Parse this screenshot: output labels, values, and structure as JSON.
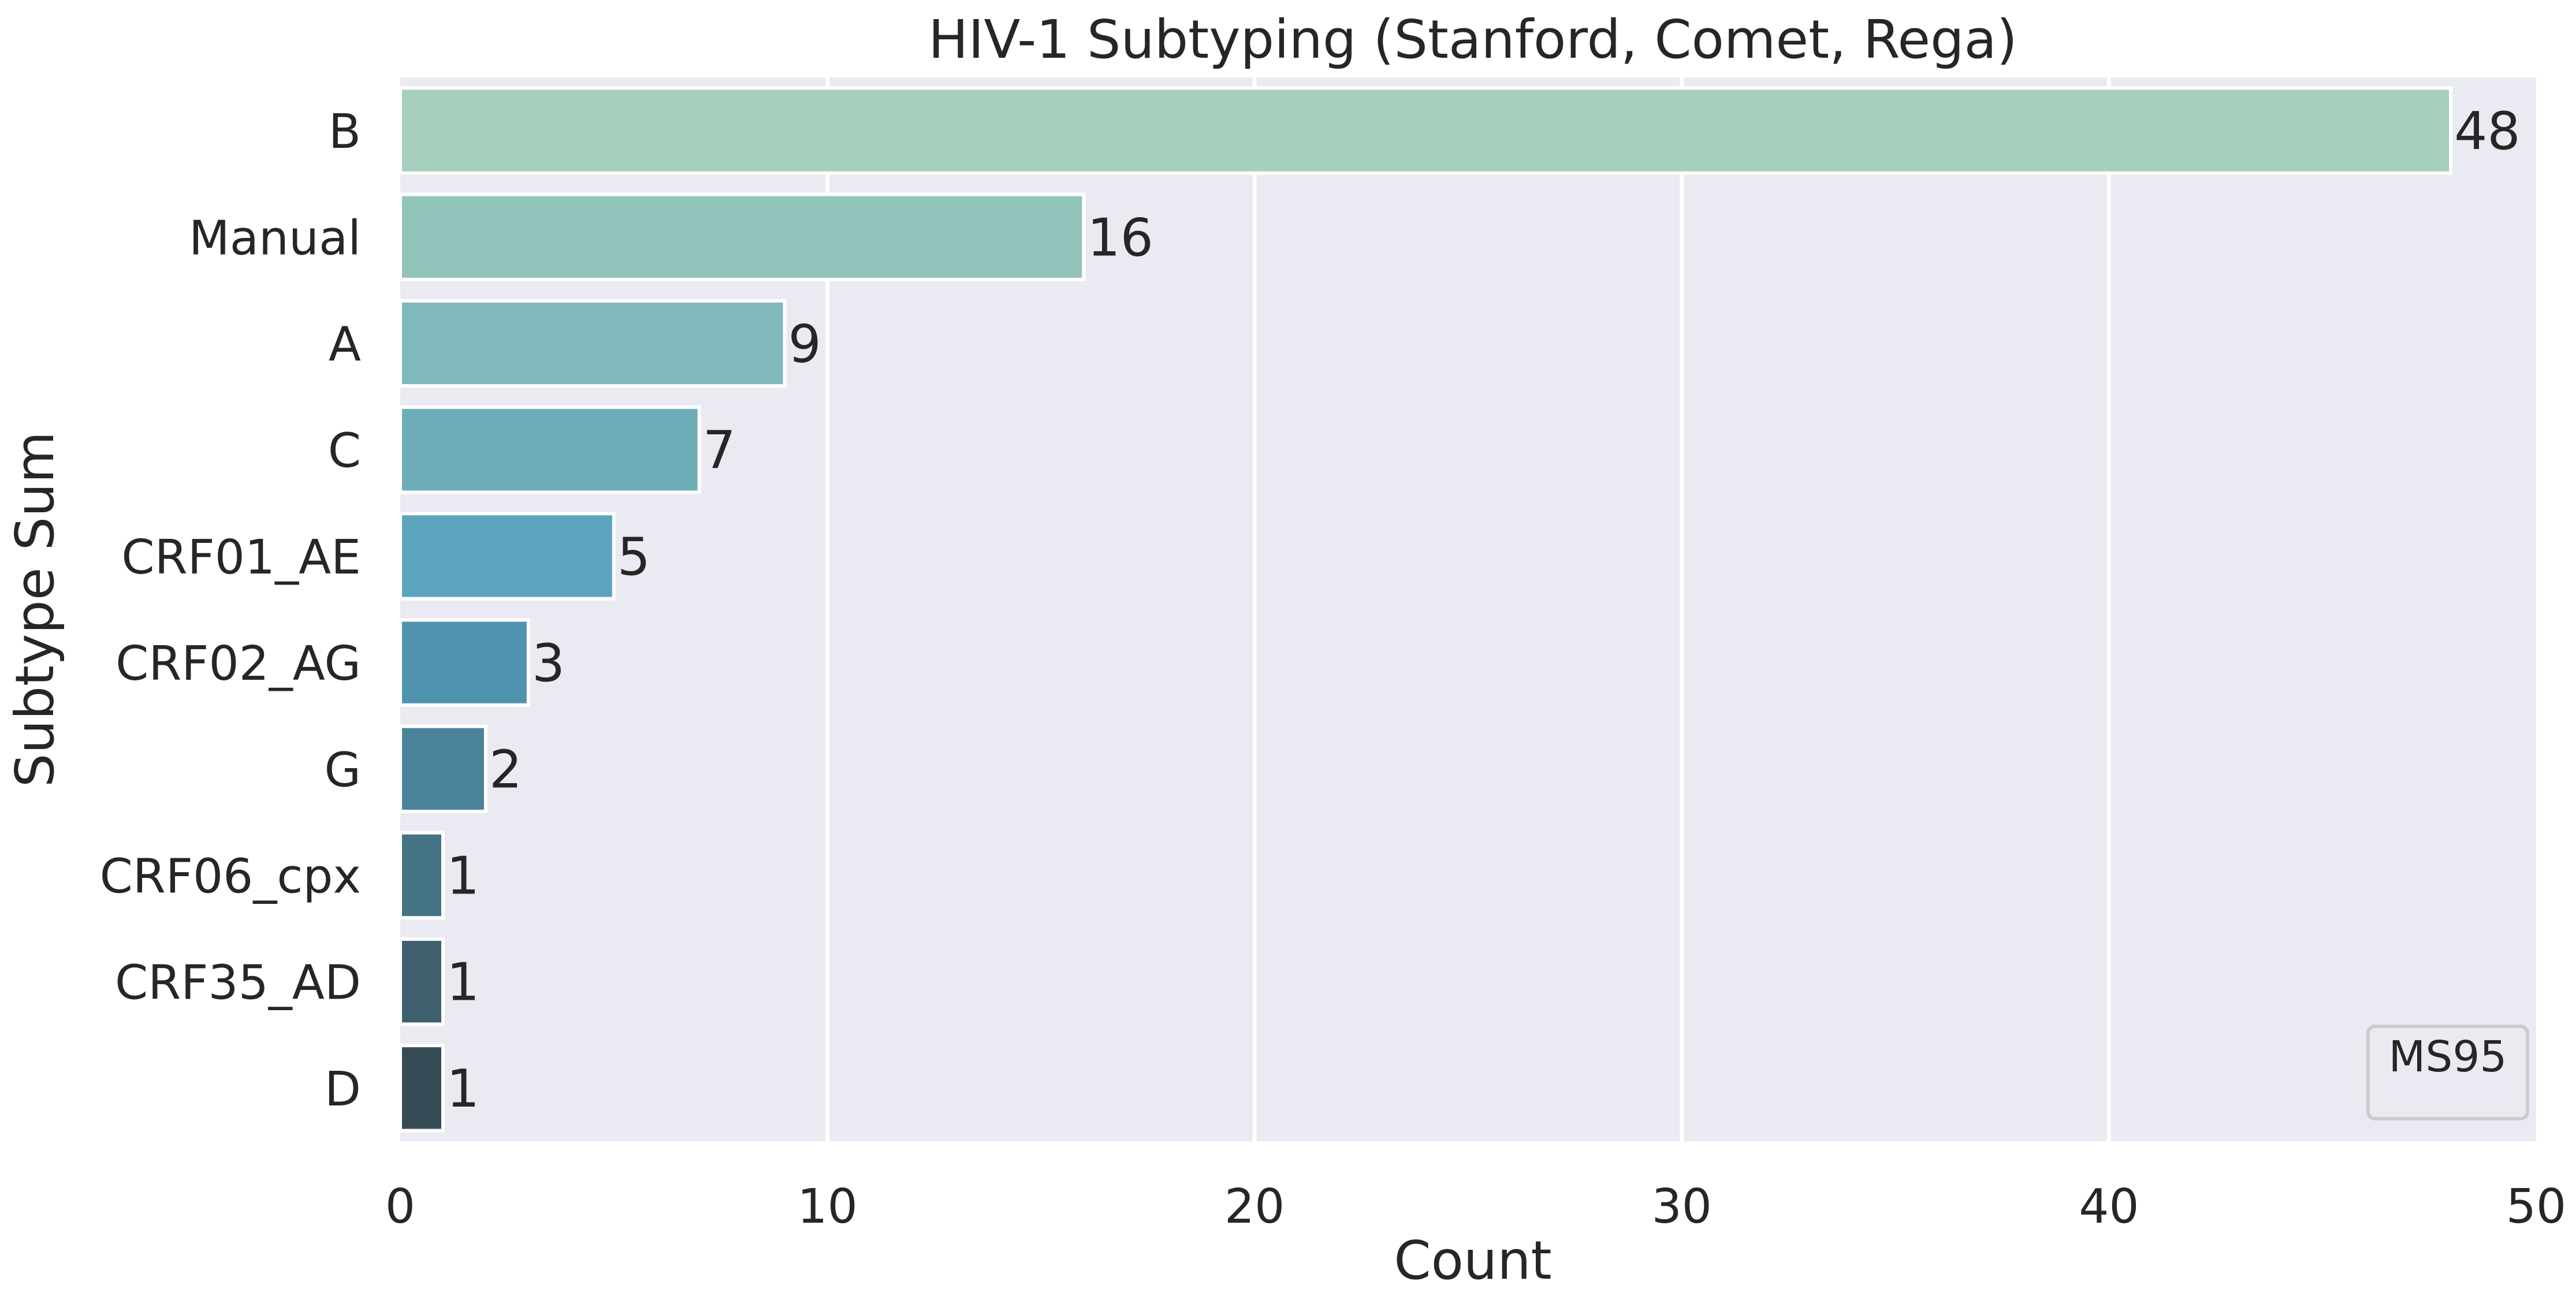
{
  "chart_data": {
    "type": "bar",
    "orientation": "horizontal",
    "title": "HIV-1 Subtyping (Stanford, Comet, Rega)",
    "xlabel": "Count",
    "ylabel": "Subtype Sum",
    "categories": [
      "B",
      "Manual",
      "A",
      "C",
      "CRF01_AE",
      "CRF02_AG",
      "G",
      "CRF06_cpx",
      "CRF35_AD",
      "D"
    ],
    "values": [
      48,
      16,
      9,
      7,
      5,
      3,
      2,
      1,
      1,
      1
    ],
    "value_labels": [
      "48",
      "16",
      "9",
      "7",
      "5",
      "3",
      "2",
      "1",
      "1",
      "1"
    ],
    "xlim": [
      0,
      50
    ],
    "xticks": [
      0,
      10,
      20,
      30,
      40,
      50
    ],
    "xtick_labels": [
      "0",
      "10",
      "20",
      "30",
      "40",
      "50"
    ],
    "grid": "vertical",
    "legend": {
      "text": "MS95",
      "placement": "lower-right"
    },
    "colors": {
      "background": "#eaeaf2",
      "grid": "#ffffff",
      "bar_outline": "#ffffff",
      "bars": [
        "#a6d0bd",
        "#93c4bc",
        "#80b9bb",
        "#6eaeb9",
        "#5ca4be",
        "#5093af",
        "#4b839b",
        "#467487",
        "#3f5f6e",
        "#364b55"
      ]
    }
  }
}
